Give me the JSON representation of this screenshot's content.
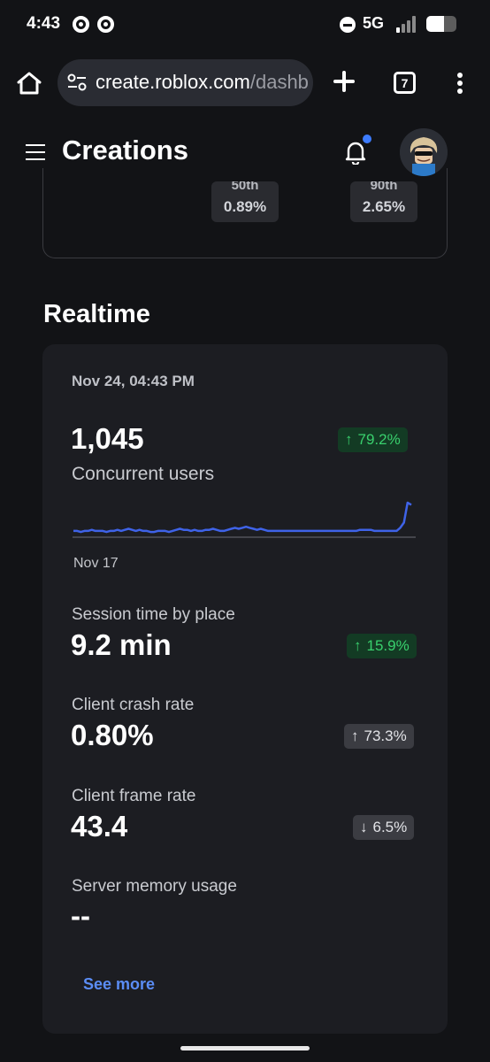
{
  "status_bar": {
    "time": "4:43",
    "network": "5G",
    "battery_percent": 60
  },
  "browser": {
    "url_host": "create.roblox.com",
    "url_path": "/dashb",
    "tab_count": "7"
  },
  "header": {
    "title": "Creations",
    "notification_dot_color": "#3d7cff"
  },
  "top_card": {
    "chips": [
      {
        "label": "50th",
        "value": "0.89%"
      },
      {
        "label": "90th",
        "value": "2.65%"
      }
    ]
  },
  "realtime": {
    "title": "Realtime",
    "date": "Nov 24, 04:43 PM",
    "concurrent": {
      "value": "1,045",
      "label": "Concurrent users",
      "delta": "79.2%",
      "delta_direction": "up",
      "sparkline_start": "Nov 17",
      "sparkline": [
        6,
        6,
        5,
        6,
        6,
        7,
        6,
        6,
        6,
        5,
        6,
        6,
        7,
        6,
        7,
        8,
        7,
        6,
        7,
        6,
        6,
        5,
        5,
        6,
        6,
        6,
        5,
        6,
        7,
        8,
        7,
        7,
        6,
        7,
        6,
        6,
        7,
        7,
        8,
        7,
        6,
        6,
        7,
        8,
        9,
        8,
        9,
        10,
        9,
        8,
        7,
        8,
        7,
        6,
        6,
        6,
        6,
        6,
        6,
        6,
        6,
        6,
        6,
        6,
        6,
        6,
        6,
        6,
        6,
        6,
        6,
        6,
        6,
        6,
        6,
        6,
        6,
        6,
        7,
        7,
        7,
        7,
        6,
        6,
        6,
        6,
        6,
        6,
        6,
        9,
        14,
        33,
        31
      ]
    },
    "metrics": [
      {
        "label": "Session time by place",
        "value": "9.2 min",
        "delta": "15.9%",
        "direction": "up",
        "tone": "positive"
      },
      {
        "label": "Client crash rate",
        "value": "0.80%",
        "delta": "73.3%",
        "direction": "up",
        "tone": "neutral"
      },
      {
        "label": "Client frame rate",
        "value": "43.4",
        "delta": "6.5%",
        "direction": "down",
        "tone": "neutral"
      },
      {
        "label": "Server memory usage",
        "value": "--"
      }
    ],
    "see_more": "See more"
  },
  "colors": {
    "accent_blue": "#5b8df5",
    "positive_green": "#39d06d",
    "chart_line": "#3f63e8"
  }
}
